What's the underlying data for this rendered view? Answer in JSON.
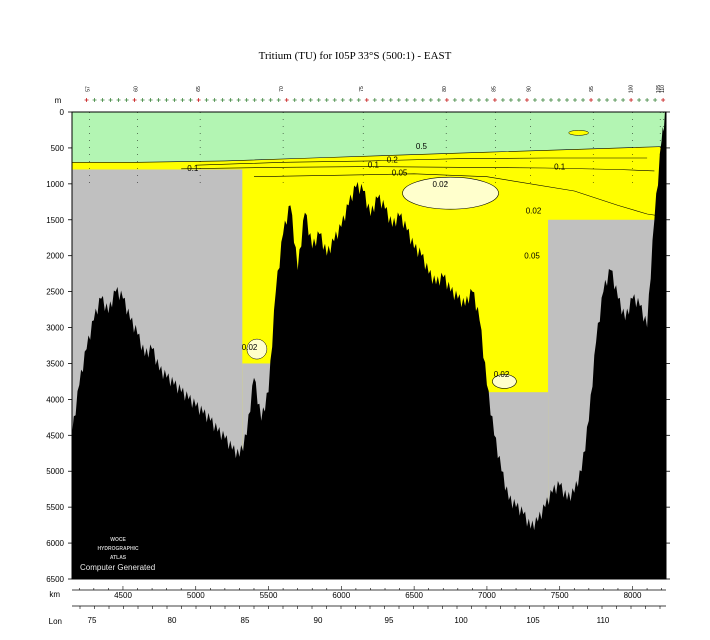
{
  "chart_data": {
    "type": "area",
    "title": "Tritium (TU) for I05P 33°S (500:1) - EAST",
    "depth_label": "m",
    "depth_ticks": [
      0,
      500,
      1000,
      1500,
      2000,
      2500,
      3000,
      3500,
      4000,
      4500,
      5000,
      5500,
      6000,
      6500
    ],
    "ylim": [
      6500,
      0
    ],
    "km_label": "km",
    "km_ticks": [
      4500,
      5000,
      5500,
      6000,
      6500,
      7000,
      7500,
      8000
    ],
    "xlim": [
      4150,
      8230
    ],
    "lon_label": "Lon",
    "lon_ticks": [
      75,
      80,
      85,
      90,
      95,
      100,
      105,
      110
    ],
    "station_labels": [
      {
        "km": 4270,
        "label": "57"
      },
      {
        "km": 4600,
        "label": "60"
      },
      {
        "km": 5030,
        "label": "65"
      },
      {
        "km": 5600,
        "label": "70"
      },
      {
        "km": 6150,
        "label": "75"
      },
      {
        "km": 6720,
        "label": "80"
      },
      {
        "km": 7060,
        "label": "85"
      },
      {
        "km": 7300,
        "label": "90"
      },
      {
        "km": 7730,
        "label": "95"
      },
      {
        "km": 8000,
        "label": "100"
      },
      {
        "km": 8190,
        "label": "105"
      },
      {
        "km": 8215,
        "label": "110"
      }
    ],
    "contour_levels": [
      {
        "value": 0.5,
        "label": "0.5",
        "color": "#b3f5b3"
      },
      {
        "value": 0.2,
        "label": "0.2",
        "color": "#b3f5b3"
      },
      {
        "value": 0.1,
        "label": "0.1",
        "color": "#ffff00"
      },
      {
        "value": 0.05,
        "label": "0.05",
        "color": "#ffff00"
      },
      {
        "value": 0.02,
        "label": "0.02",
        "color": "#ffffcc"
      }
    ],
    "contour_labels": [
      {
        "km": 6550,
        "depth": 470,
        "label": "0.5"
      },
      {
        "km": 6350,
        "depth": 660,
        "label": "0.2"
      },
      {
        "km": 6220,
        "depth": 730,
        "label": "0.1"
      },
      {
        "km": 6400,
        "depth": 840,
        "label": "0.05"
      },
      {
        "km": 4980,
        "depth": 780,
        "label": "0.1"
      },
      {
        "km": 7500,
        "depth": 760,
        "label": "0.1"
      },
      {
        "km": 6680,
        "depth": 1000,
        "label": "0.02"
      },
      {
        "km": 7320,
        "depth": 1370,
        "label": "0.02"
      },
      {
        "km": 7310,
        "depth": 2000,
        "label": "0.05"
      },
      {
        "km": 5370,
        "depth": 3270,
        "label": "0.02"
      },
      {
        "km": 7100,
        "depth": 3650,
        "label": "0.02"
      }
    ],
    "bathymetry": [
      [
        4150,
        4500
      ],
      [
        4200,
        3800
      ],
      [
        4250,
        3300
      ],
      [
        4300,
        2900
      ],
      [
        4350,
        2600
      ],
      [
        4400,
        2800
      ],
      [
        4450,
        2500
      ],
      [
        4500,
        2600
      ],
      [
        4550,
        2900
      ],
      [
        4600,
        3100
      ],
      [
        4650,
        3400
      ],
      [
        4700,
        3300
      ],
      [
        4750,
        3600
      ],
      [
        4800,
        3700
      ],
      [
        4850,
        3800
      ],
      [
        4900,
        3900
      ],
      [
        4950,
        4000
      ],
      [
        5000,
        4100
      ],
      [
        5050,
        4200
      ],
      [
        5100,
        4300
      ],
      [
        5150,
        4450
      ],
      [
        5200,
        4550
      ],
      [
        5250,
        4700
      ],
      [
        5300,
        4800
      ],
      [
        5350,
        4500
      ],
      [
        5400,
        3700
      ],
      [
        5450,
        4300
      ],
      [
        5500,
        3900
      ],
      [
        5550,
        2500
      ],
      [
        5600,
        1700
      ],
      [
        5650,
        1300
      ],
      [
        5700,
        2200
      ],
      [
        5750,
        1400
      ],
      [
        5800,
        1900
      ],
      [
        5850,
        1700
      ],
      [
        5900,
        2000
      ],
      [
        5950,
        1800
      ],
      [
        6000,
        1600
      ],
      [
        6050,
        1300
      ],
      [
        6100,
        1050
      ],
      [
        6150,
        1100
      ],
      [
        6200,
        1450
      ],
      [
        6250,
        1200
      ],
      [
        6300,
        1350
      ],
      [
        6350,
        1600
      ],
      [
        6400,
        1450
      ],
      [
        6450,
        1650
      ],
      [
        6500,
        1900
      ],
      [
        6550,
        2000
      ],
      [
        6600,
        2250
      ],
      [
        6650,
        2400
      ],
      [
        6700,
        2300
      ],
      [
        6750,
        2500
      ],
      [
        6800,
        2600
      ],
      [
        6850,
        2700
      ],
      [
        6900,
        2500
      ],
      [
        6950,
        2900
      ],
      [
        7000,
        3800
      ],
      [
        7050,
        4500
      ],
      [
        7100,
        5000
      ],
      [
        7150,
        5400
      ],
      [
        7200,
        5500
      ],
      [
        7250,
        5600
      ],
      [
        7300,
        5800
      ],
      [
        7350,
        5700
      ],
      [
        7400,
        5500
      ],
      [
        7450,
        5300
      ],
      [
        7500,
        5200
      ],
      [
        7550,
        5400
      ],
      [
        7600,
        5300
      ],
      [
        7650,
        5000
      ],
      [
        7700,
        4300
      ],
      [
        7750,
        3200
      ],
      [
        7800,
        2500
      ],
      [
        7850,
        2200
      ],
      [
        7900,
        2600
      ],
      [
        7950,
        2900
      ],
      [
        8000,
        2600
      ],
      [
        8050,
        2700
      ],
      [
        8100,
        3000
      ],
      [
        8150,
        1500
      ],
      [
        8200,
        400
      ],
      [
        8230,
        0
      ]
    ],
    "unsampled_regions": [
      {
        "km_start": 4150,
        "km_end": 5320,
        "depth_top": 800
      },
      {
        "km_start": 5320,
        "km_end": 5600,
        "depth_top": 3500
      },
      {
        "km_start": 6950,
        "km_end": 7420,
        "depth_top": 3900
      },
      {
        "km_start": 7420,
        "km_end": 8230,
        "depth_top": 1500
      }
    ],
    "watermark": [
      "WOCE",
      "HYDROGRAPHIC",
      "ATLAS"
    ],
    "footer_text": "Computer Generated",
    "colors": {
      "bathymetry": "#000000",
      "unsampled": "#c0c0c0",
      "band_0_2_plus": "#b3f5b3",
      "band_0_05_0_2": "#ffff00",
      "band_below_0_02": "#ffffcc"
    }
  }
}
